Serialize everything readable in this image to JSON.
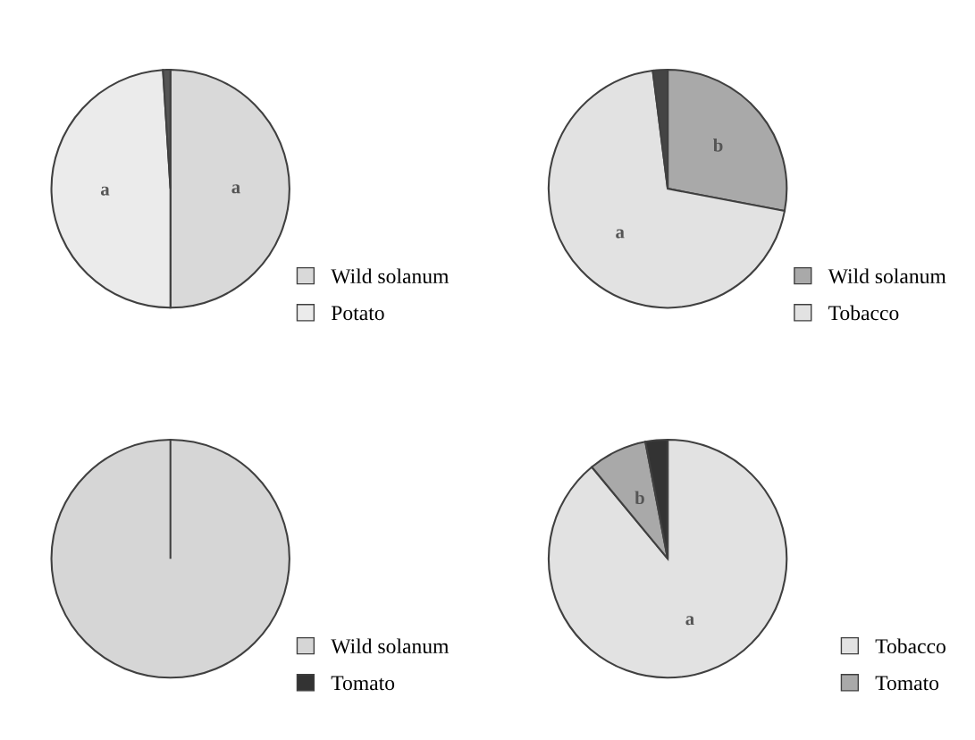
{
  "chart_data": [
    {
      "type": "pie",
      "categories": [
        "Wild solanum",
        "Potato",
        null
      ],
      "values": [
        50,
        49,
        1
      ],
      "colors": [
        "#d9d9d9",
        "#ebebeb",
        "#555555"
      ],
      "value_labels": [
        "a",
        "a",
        null
      ],
      "legend": "bottom right"
    },
    {
      "type": "pie",
      "categories": [
        "Wild solanum",
        "Tobacco",
        null
      ],
      "values": [
        28,
        70,
        2
      ],
      "colors": [
        "#a9a9a9",
        "#e2e2e2",
        "#444444"
      ],
      "value_labels": [
        "b",
        "a",
        null
      ],
      "legend": "bottom right"
    },
    {
      "type": "pie",
      "categories": [
        "Wild solanum",
        "Tomato"
      ],
      "values": [
        100,
        0
      ],
      "colors": [
        "#d6d6d6",
        "#333333"
      ],
      "legend": "bottom right"
    },
    {
      "type": "pie",
      "categories": [
        "Tobacco",
        "Tomato",
        null
      ],
      "values": [
        89,
        8,
        3
      ],
      "colors": [
        "#e2e2e2",
        "#a9a9a9",
        "#333333"
      ],
      "value_labels": [
        "a",
        "b",
        null
      ],
      "legend": "bottom right"
    }
  ]
}
